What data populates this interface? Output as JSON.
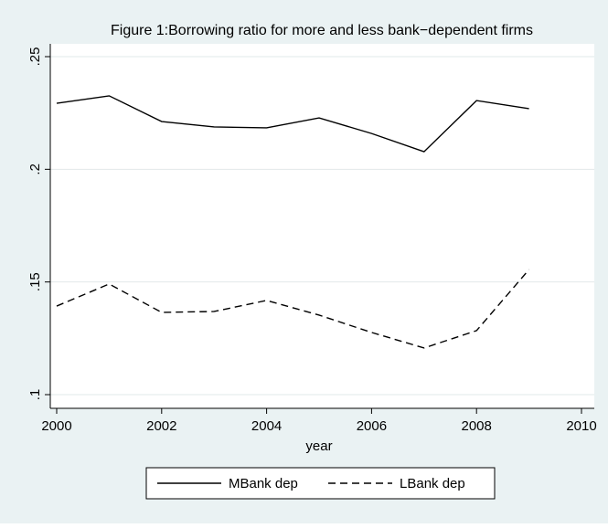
{
  "chart_data": {
    "type": "line",
    "title": "Figure 1:Borrowing ratio for more and less bank−dependent firms",
    "x_label": "year",
    "x": [
      2000,
      2001,
      2002,
      2003,
      2004,
      2005,
      2006,
      2007,
      2008,
      2009
    ],
    "series": [
      {
        "name": "MBank dep",
        "color": "#000000",
        "dash": "solid",
        "values": [
          0.2293,
          0.2326,
          0.2212,
          0.2188,
          0.2184,
          0.2228,
          0.2159,
          0.2078,
          0.2305,
          0.2269
        ]
      },
      {
        "name": "LBank dep",
        "color": "#000000",
        "dash": "dashed",
        "values": [
          0.1393,
          0.1491,
          0.1365,
          0.1369,
          0.1418,
          0.1353,
          0.1276,
          0.1207,
          0.1284,
          0.1555
        ]
      }
    ],
    "xlim": [
      2000,
      2010
    ],
    "xticks": [
      2000,
      2002,
      2004,
      2006,
      2008,
      2010
    ],
    "ylim": [
      0.1,
      0.25
    ],
    "yticks": [
      {
        "value": 0.1,
        "label": ".1"
      },
      {
        "value": 0.15,
        "label": ".15"
      },
      {
        "value": 0.2,
        "label": ".2"
      },
      {
        "value": 0.25,
        "label": ".25"
      }
    ],
    "grid": true,
    "legend": "bottom"
  }
}
